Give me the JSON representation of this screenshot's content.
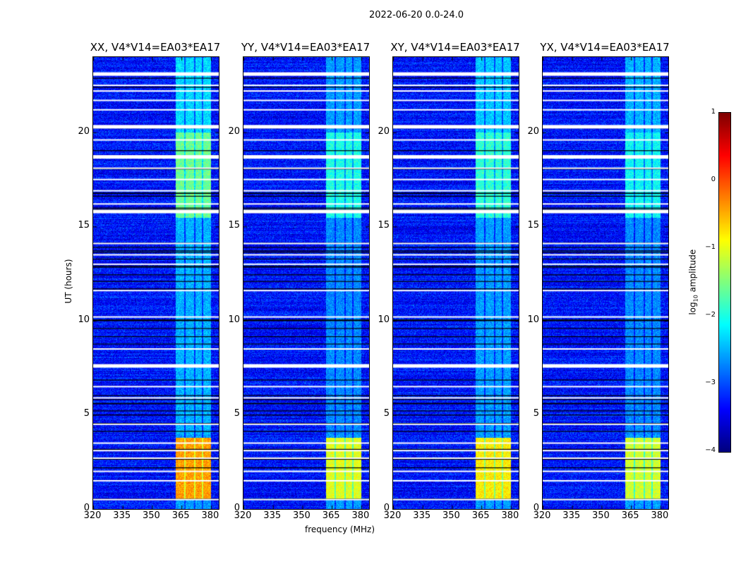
{
  "chart_data": {
    "type": "heatmap",
    "title": "2022-06-20 0.0-24.0",
    "xlabel": "frequency (MHz)",
    "ylabel": "UT (hours)",
    "xlim": [
      320,
      384
    ],
    "ylim": [
      0,
      24
    ],
    "xticks": [
      "320",
      "335",
      "350",
      "365",
      "380"
    ],
    "xtick_values": [
      320,
      335,
      350,
      365,
      380
    ],
    "yticks": [
      "0",
      "5",
      "10",
      "15",
      "20"
    ],
    "ytick_values": [
      0,
      5,
      10,
      15,
      20
    ],
    "colorbar": {
      "label_prefix": "log",
      "label_sub": "10",
      "label_suffix": " amplitude",
      "range": [
        -4,
        1
      ],
      "ticks": [
        "1",
        "0",
        "−1",
        "−2",
        "−3",
        "−4"
      ],
      "tick_values": [
        1,
        0,
        -1,
        -2,
        -3,
        -4
      ],
      "colormap": "jet"
    },
    "background_level": -3.3,
    "rfi_band_columns_mhz": [
      [
        362,
        366.3
      ],
      [
        367,
        371.3
      ],
      [
        372,
        375.3
      ],
      [
        376,
        380
      ]
    ],
    "flagged_white_rows_ut": [
      23.1,
      22.5,
      22.2,
      21.7,
      21.2,
      20.3,
      19.6,
      18.7,
      18.1,
      17.5,
      16.9,
      16.2,
      15.8,
      14.1,
      13.5,
      13.0,
      11.6,
      10.2,
      8.5,
      7.6,
      6.5,
      5.9,
      4.5,
      3.5,
      3.1,
      2.7,
      2.0,
      1.5,
      0.5
    ],
    "thick_white_rows_ut": [
      23.1,
      20.3,
      18.7,
      15.8,
      7.6
    ],
    "panels": [
      {
        "title": "XX, V4*V14=EA03*EA17",
        "band_levels": [
          {
            "ut": [
              0.5,
              3.8
            ],
            "level": -0.4
          },
          {
            "ut": [
              15.5,
              20
            ],
            "level": -1.6
          },
          {
            "ut": [
              20,
              24
            ],
            "level": -2.3
          },
          {
            "ut": [
              4,
              15.5
            ],
            "level": -2.5
          }
        ]
      },
      {
        "title": "YY, V4*V14=EA03*EA17",
        "band_levels": [
          {
            "ut": [
              0.5,
              3.8
            ],
            "level": -1.0
          },
          {
            "ut": [
              15.5,
              20
            ],
            "level": -2.0
          },
          {
            "ut": [
              20,
              24
            ],
            "level": -2.6
          },
          {
            "ut": [
              4,
              15.5
            ],
            "level": -2.7
          }
        ]
      },
      {
        "title": "XY, V4*V14=EA03*EA17",
        "band_levels": [
          {
            "ut": [
              0.5,
              3.8
            ],
            "level": -0.8
          },
          {
            "ut": [
              15.5,
              20
            ],
            "level": -1.9
          },
          {
            "ut": [
              20,
              24
            ],
            "level": -2.4
          },
          {
            "ut": [
              4,
              15.5
            ],
            "level": -2.6
          }
        ]
      },
      {
        "title": "YX, V4*V14=EA03*EA17",
        "band_levels": [
          {
            "ut": [
              0.5,
              3.8
            ],
            "level": -1.1
          },
          {
            "ut": [
              15.5,
              20
            ],
            "level": -2.1
          },
          {
            "ut": [
              20,
              24
            ],
            "level": -2.5
          },
          {
            "ut": [
              4,
              15.5
            ],
            "level": -2.7
          }
        ]
      }
    ]
  }
}
